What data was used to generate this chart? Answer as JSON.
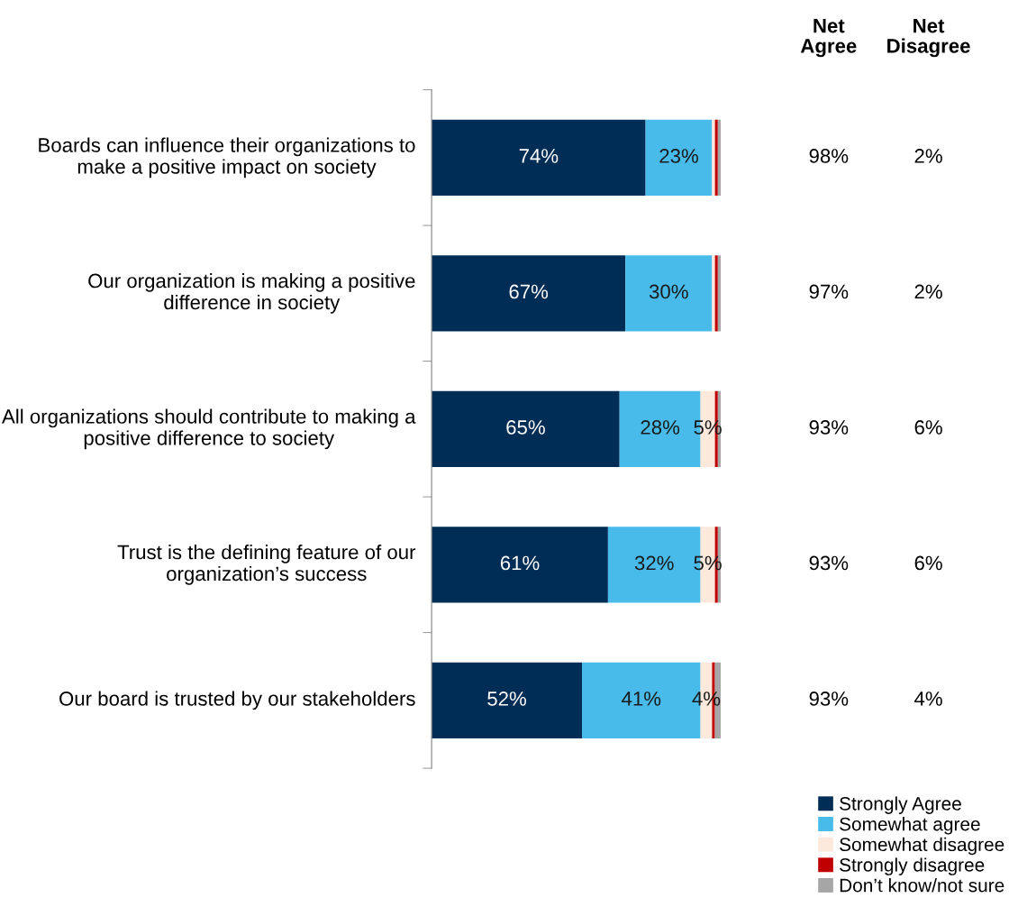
{
  "chart_data": {
    "type": "bar",
    "orientation": "horizontal",
    "stacked": true,
    "categories": [
      "Boards can influence their organizations to make a positive impact on society",
      "Our organization is making a positive difference in society",
      "All organizations should contribute to making a positive difference to society",
      "Trust is the defining feature of our organization’s success",
      "Our board is trusted by our stakeholders"
    ],
    "series": [
      {
        "name": "Strongly Agree",
        "color": "#002d56",
        "values": [
          74,
          67,
          65,
          61,
          52
        ],
        "value_labels": [
          "74%",
          "67%",
          "65%",
          "61%",
          "52%"
        ]
      },
      {
        "name": "Somewhat agree",
        "color": "#48bbea",
        "values": [
          23,
          30,
          28,
          32,
          41
        ],
        "value_labels": [
          "23%",
          "30%",
          "28%",
          "32%",
          "41%"
        ]
      },
      {
        "name": "Somewhat disagree",
        "color": "#fde8dc",
        "values": [
          1,
          1,
          5,
          5,
          4
        ],
        "value_labels": [
          null,
          null,
          "5%",
          "5%",
          "4%"
        ]
      },
      {
        "name": "Strongly disagree",
        "color": "#c00000",
        "values": [
          1,
          1,
          1,
          1,
          1
        ]
      },
      {
        "name": "Don’t know/not sure",
        "color": "#a6a6a6",
        "values": [
          1,
          1,
          1,
          1,
          2
        ]
      }
    ],
    "annotations": [
      "Net\nAgree",
      "Net\nDisagree",
      "98%",
      "2%",
      "97%",
      "2%",
      "93%",
      "6%",
      "93%",
      "6%",
      "93%",
      "4%"
    ],
    "legend": "bottom right",
    "grid": false
  }
}
